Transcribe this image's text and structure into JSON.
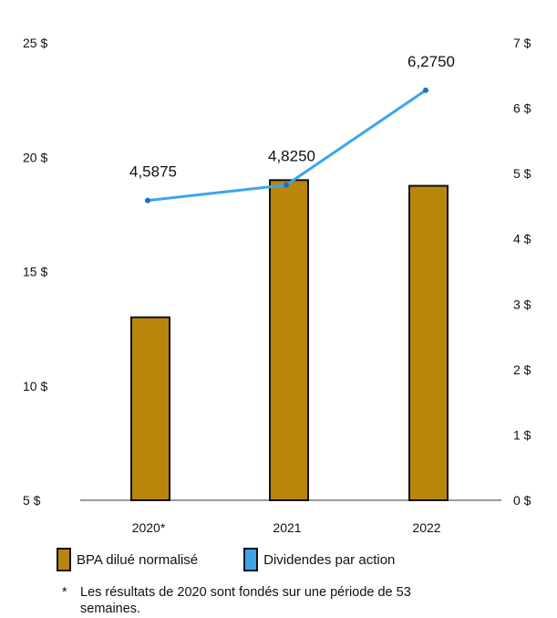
{
  "chart_data": {
    "type": "bar+line",
    "categories": [
      "2020*",
      "2021",
      "2022"
    ],
    "bar_series": {
      "name": "BPA dilué normalisé",
      "values": [
        13.0,
        19.0,
        18.75
      ],
      "color": "#b8860b",
      "axis": "left",
      "ylim": [
        5,
        25
      ],
      "ticks": [
        "5 $",
        "10 $",
        "15 $",
        "20 $",
        "25 $"
      ]
    },
    "line_series": {
      "name": "Dividendes par action",
      "values": [
        4.5875,
        4.825,
        6.275
      ],
      "labels": [
        "4,5875",
        "4,8250",
        "6,2750"
      ],
      "color": "#3aa6e8",
      "axis": "right",
      "ylim": [
        0,
        7
      ],
      "ticks": [
        "0 $",
        "1 $",
        "2 $",
        "3 $",
        "4 $",
        "5 $",
        "6 $",
        "7 $"
      ]
    },
    "legend_placement": "bottom",
    "grid": false
  },
  "legend": {
    "bar_label": "BPA dilué normalisé",
    "line_label": "Dividendes par action"
  },
  "footnote": {
    "marker": "*",
    "text": "Les résultats de 2020 sont fondés sur une période de 53 semaines."
  }
}
